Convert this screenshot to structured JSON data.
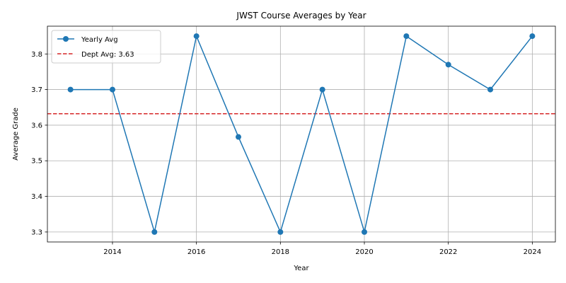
{
  "chart_data": {
    "type": "line",
    "title": "JWST Course Averages by Year",
    "xlabel": "Year",
    "ylabel": "Average Grade",
    "xlim": [
      2012.45,
      2024.55
    ],
    "ylim": [
      3.272,
      3.878
    ],
    "xticks": [
      2014,
      2016,
      2018,
      2020,
      2022,
      2024
    ],
    "yticks": [
      3.3,
      3.4,
      3.5,
      3.6,
      3.7,
      3.8
    ],
    "grid": true,
    "legend_position": "upper-left",
    "series": [
      {
        "name": "Yearly Avg",
        "color": "#1f77b4",
        "marker": "circle",
        "x": [
          2013,
          2014,
          2015,
          2016,
          2017,
          2018,
          2019,
          2020,
          2021,
          2022,
          2023,
          2024
        ],
        "y": [
          3.7,
          3.7,
          3.3,
          3.85,
          3.567,
          3.3,
          3.7,
          3.3,
          3.85,
          3.77,
          3.7,
          3.85
        ]
      }
    ],
    "reference_lines": [
      {
        "name": "Dept Avg: 3.63",
        "y": 3.632,
        "color": "#d62728",
        "style": "dashed"
      }
    ]
  }
}
